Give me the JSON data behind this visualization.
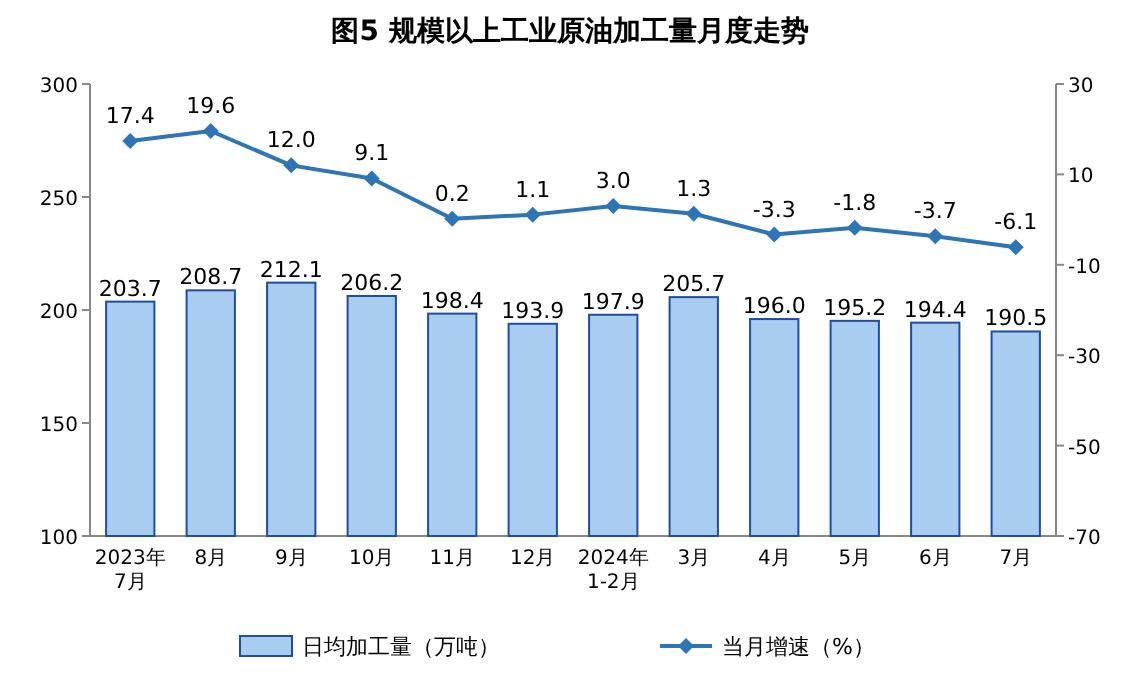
{
  "chart_data": {
    "type": "bar",
    "title": "图5  规模以上工业原油加工量月度走势",
    "categories": [
      "2023年\n7月",
      "8月",
      "9月",
      "10月",
      "11月",
      "12月",
      "2024年\n1-2月",
      "3月",
      "4月",
      "5月",
      "6月",
      "7月"
    ],
    "series": [
      {
        "name": "日均加工量（万吨）",
        "color": "#a9cdf0",
        "values": [
          203.7,
          208.7,
          212.1,
          206.2,
          198.4,
          193.9,
          197.9,
          205.7,
          196.0,
          195.2,
          194.4,
          190.5
        ],
        "value_labels": [
          "203.7",
          "208.7",
          "212.1",
          "206.2",
          "198.4",
          "193.9",
          "197.9",
          "205.7",
          "196.0",
          "195.2",
          "194.4",
          "190.5"
        ]
      },
      {
        "name": "当月增速（%）",
        "type": "line",
        "axis": "y2",
        "color": "#2e75b6",
        "marker": "diamond",
        "values": [
          17.4,
          19.6,
          12.0,
          9.1,
          0.2,
          1.1,
          3.0,
          1.3,
          -3.3,
          -1.8,
          -3.7,
          -6.1
        ],
        "value_labels": [
          "17.4",
          "19.6",
          "12.0",
          "9.1",
          "0.2",
          "1.1",
          "3.0",
          "1.3",
          "-3.3",
          "-1.8",
          "-3.7",
          "-6.1"
        ]
      }
    ],
    "ylim": [
      100,
      300
    ],
    "yticks": [
      100,
      150,
      200,
      250,
      300
    ],
    "y2lim": [
      -70,
      30
    ],
    "y2ticks": [
      -70,
      -50,
      -30,
      -10,
      10,
      30
    ],
    "legend": "bottom"
  }
}
